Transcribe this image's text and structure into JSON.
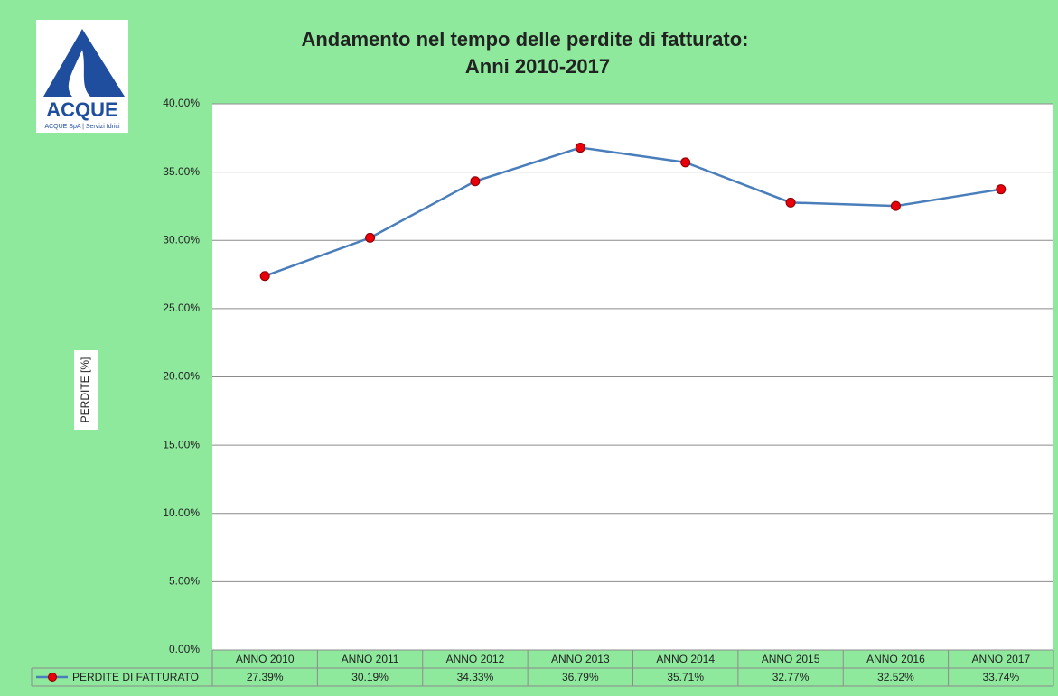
{
  "logo": {
    "name": "ACQUE",
    "tagline": "ACQUE SpA | Servizi Idrici"
  },
  "chart_data": {
    "type": "line",
    "title": [
      "Andamento nel tempo delle perdite di fatturato:",
      "Anni 2010-2017"
    ],
    "y_label": "PERDITE [%]",
    "categories": [
      "ANNO 2010",
      "ANNO 2011",
      "ANNO 2012",
      "ANNO 2013",
      "ANNO 2014",
      "ANNO 2015",
      "ANNO 2016",
      "ANNO 2017"
    ],
    "series": [
      {
        "name": "PERDITE DI FATTURATO",
        "color": "#4a7ebb",
        "marker_color": "#e8000b",
        "values": [
          27.39,
          30.19,
          34.33,
          36.79,
          35.71,
          32.77,
          32.52,
          33.74
        ],
        "value_labels": [
          "27.39%",
          "30.19%",
          "34.33%",
          "36.79%",
          "35.71%",
          "32.77%",
          "32.52%",
          "33.74%"
        ]
      }
    ],
    "ylim": [
      0,
      40
    ],
    "yticks": [
      {
        "value": 0,
        "label": "0.00%"
      },
      {
        "value": 5,
        "label": "5.00%"
      },
      {
        "value": 10,
        "label": "10.00%"
      },
      {
        "value": 15,
        "label": "15.00%"
      },
      {
        "value": 20,
        "label": "20.00%"
      },
      {
        "value": 25,
        "label": "25.00%"
      },
      {
        "value": 30,
        "label": "30.00%"
      },
      {
        "value": 35,
        "label": "35.00%"
      },
      {
        "value": 40,
        "label": "40.00%"
      }
    ],
    "grid": true
  }
}
